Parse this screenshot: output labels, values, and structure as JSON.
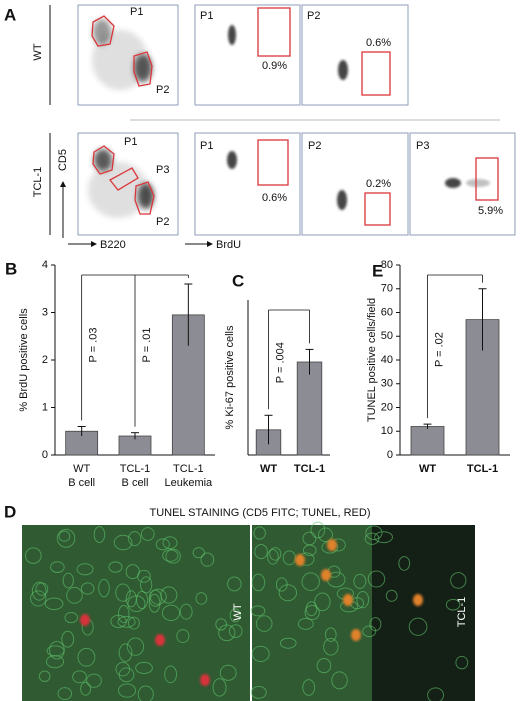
{
  "flow": {
    "letter": "A",
    "y_axis": "CD5",
    "x_axes": [
      "B220",
      "BrdU"
    ],
    "rows": [
      {
        "label": "WT",
        "plots": [
          {
            "gates": [
              "P1",
              "P2"
            ]
          },
          {
            "title": "P1",
            "pct": "0.9%"
          },
          {
            "title": "P2",
            "pct": "0.6%"
          }
        ]
      },
      {
        "label": "TCL-1",
        "plots": [
          {
            "gates": [
              "P1",
              "P3",
              "P2"
            ]
          },
          {
            "title": "P1",
            "pct": "0.6%"
          },
          {
            "title": "P2",
            "pct": "0.2%"
          },
          {
            "title": "P3",
            "pct": "5.9%"
          }
        ]
      }
    ]
  },
  "chart_data": [
    {
      "type": "bar",
      "panel": "B",
      "y_label": "% BrdU positive cells",
      "categories": [
        [
          "WT",
          "B cell"
        ],
        [
          "TCL-1",
          "B cell"
        ],
        [
          "TCL-1",
          "Leukemia"
        ]
      ],
      "values": [
        0.5,
        0.4,
        2.95
      ],
      "errors": [
        0.1,
        0.07,
        0.65
      ],
      "color": "#8c8c94",
      "ylim": [
        0,
        4
      ],
      "yticks": [
        0,
        1,
        2,
        3,
        4
      ],
      "annotations": [
        "P = .03",
        "P = .01"
      ]
    },
    {
      "type": "bar",
      "panel": "C",
      "y_label": "% Ki-67 positive cells",
      "categories": [
        [
          "WT"
        ],
        [
          "TCL-1"
        ]
      ],
      "values": [
        1.3,
        4.8
      ],
      "errors": [
        0.75,
        0.65
      ],
      "color": "#8c8c94",
      "ylim": [
        0,
        8
      ],
      "annotations": [
        "P = .004"
      ]
    },
    {
      "type": "bar",
      "panel": "E",
      "y_label": "TUNEL positive cells/field",
      "categories": [
        [
          "WT"
        ],
        [
          "TCL-1"
        ]
      ],
      "values": [
        12,
        57
      ],
      "errors": [
        1,
        13
      ],
      "color": "#8c8c94",
      "ylim": [
        0,
        80
      ],
      "yticks": [
        0,
        10,
        20,
        30,
        40,
        50,
        60,
        70,
        80
      ],
      "annotations": [
        "P = .02"
      ]
    }
  ],
  "micrograph": {
    "letter": "D",
    "title": "TUNEL STAINING (CD5 FITC; TUNEL, RED)",
    "labels": [
      "WT",
      "TCL-1"
    ]
  }
}
